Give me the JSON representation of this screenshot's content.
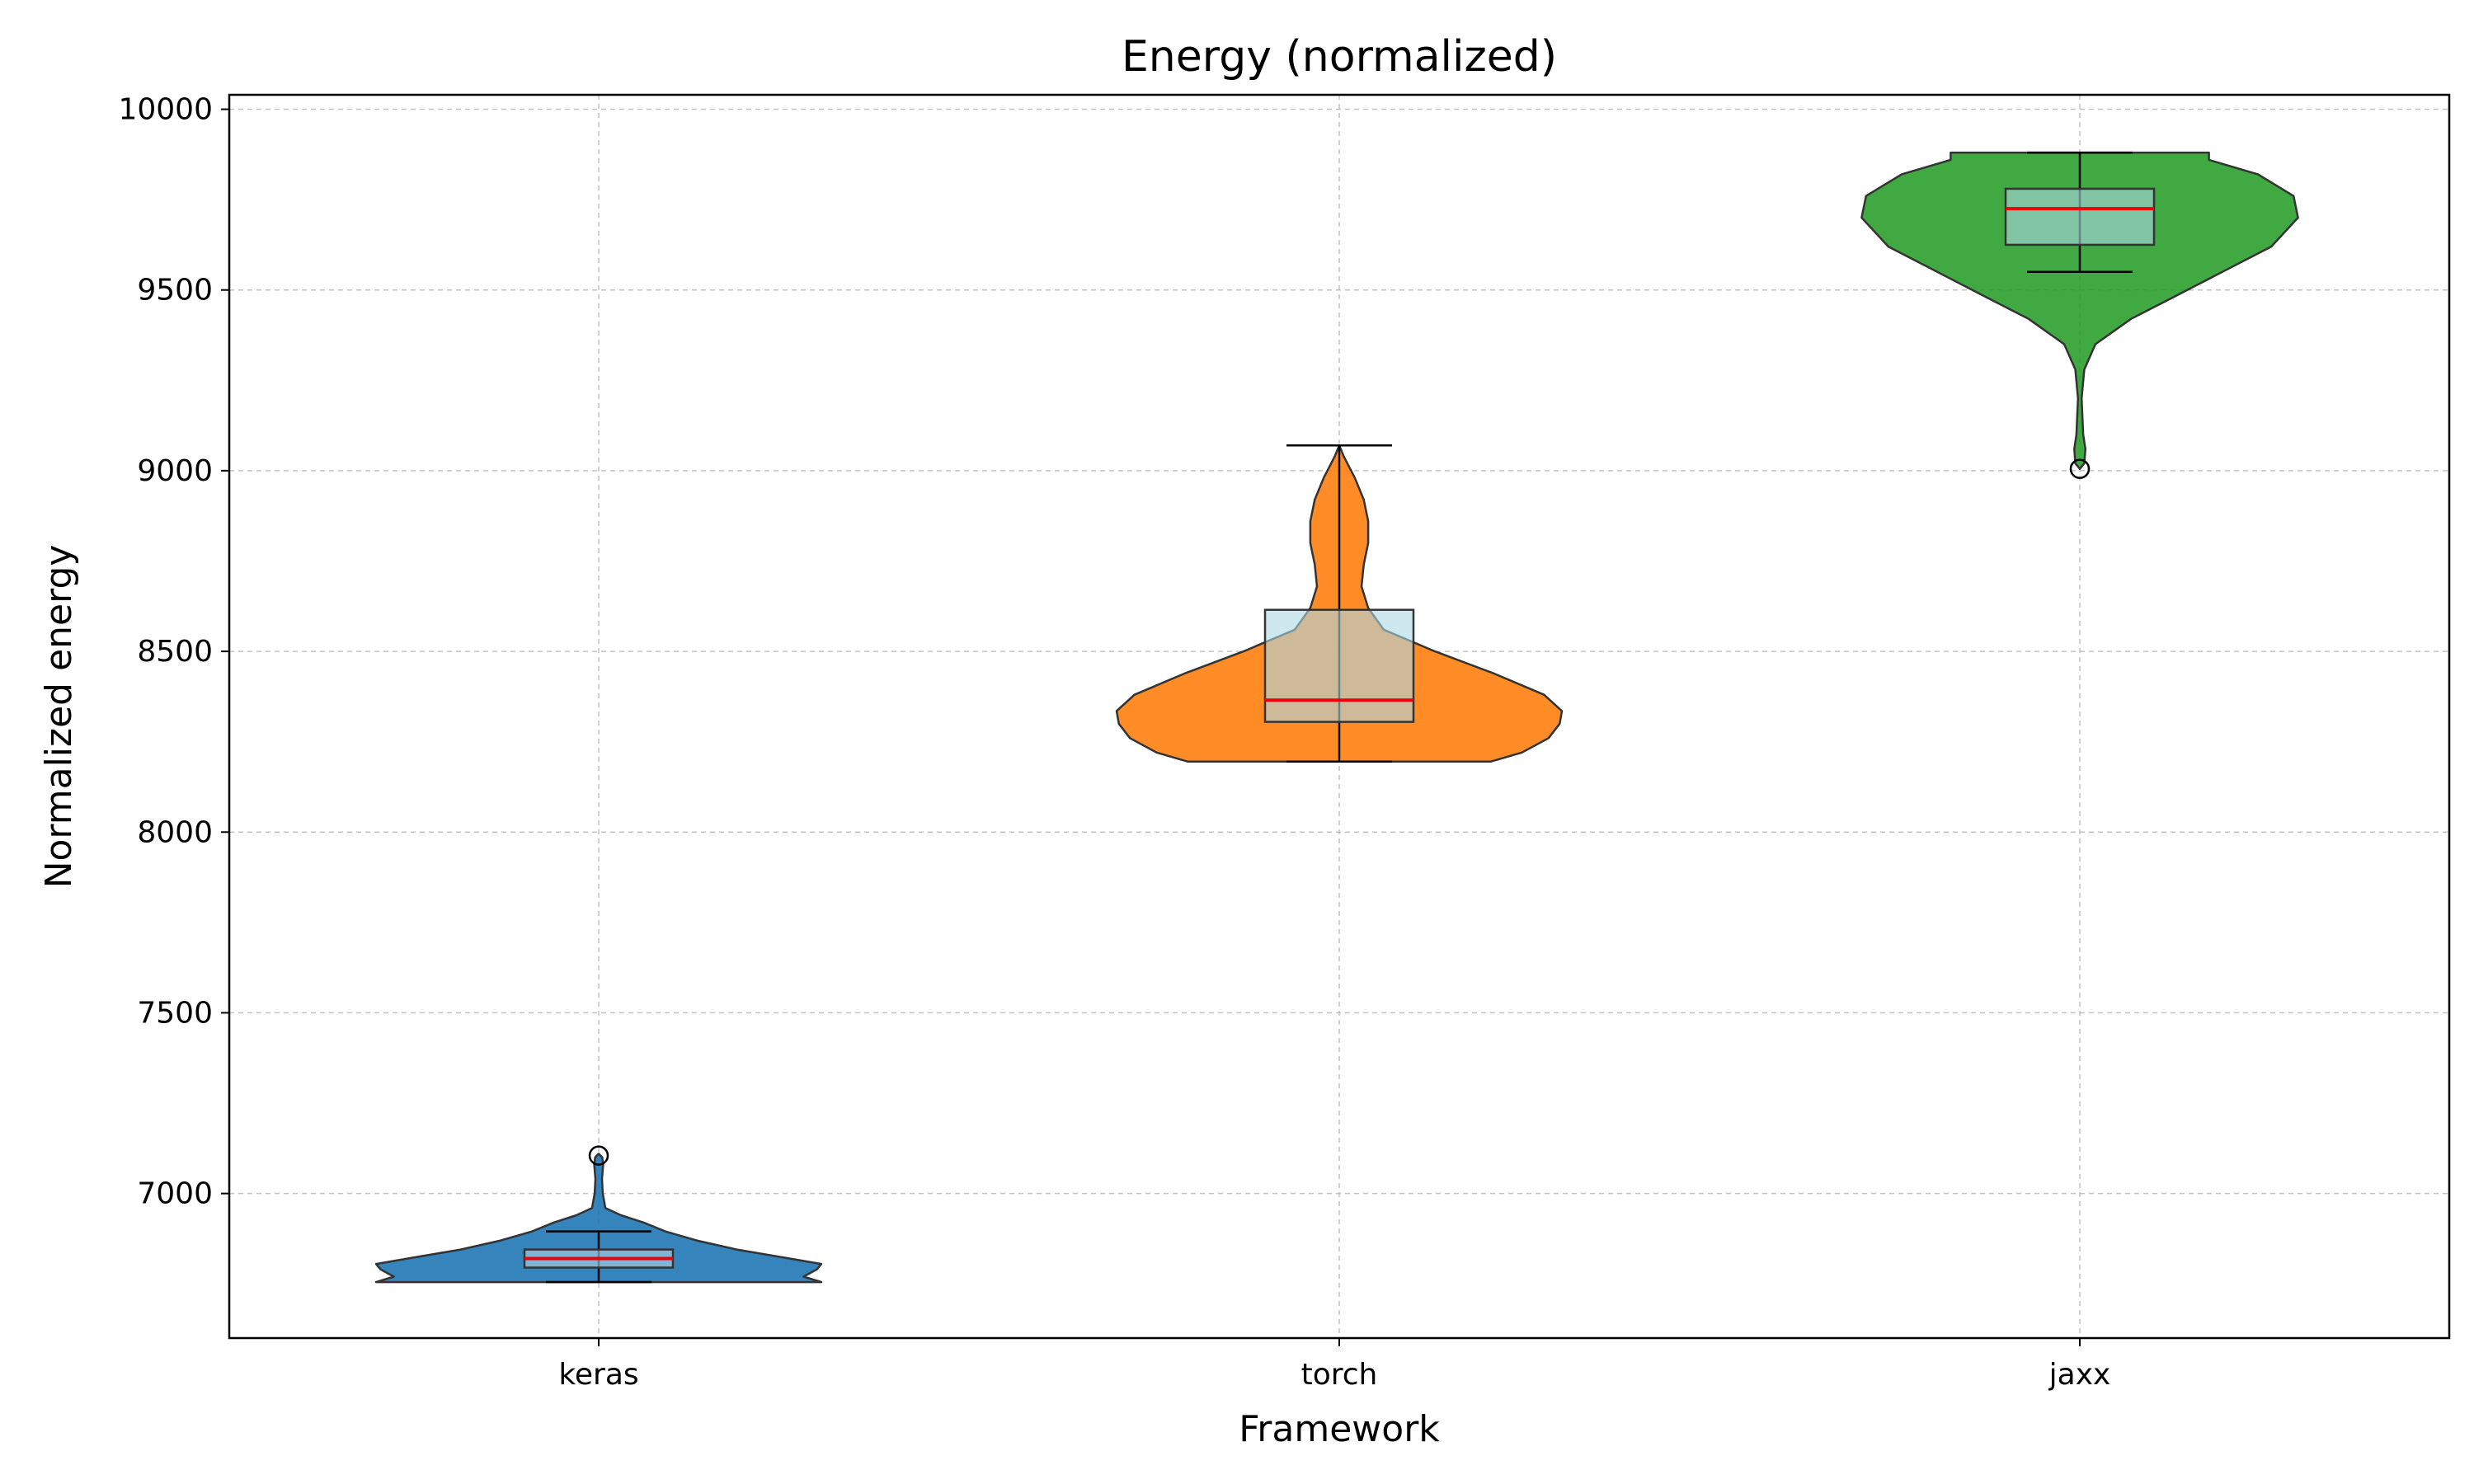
{
  "chart_data": {
    "type": "violin",
    "title": "Energy (normalized)",
    "xlabel": "Framework",
    "ylabel": "Normalized energy",
    "categories": [
      "keras",
      "torch",
      "jaxx"
    ],
    "ylim": [
      6600,
      10040
    ],
    "yticks": [
      7000,
      7500,
      8000,
      8500,
      9000,
      9500,
      10000
    ],
    "grid": true,
    "series": [
      {
        "category": "keras",
        "color": "#1f77b4",
        "min": 6755,
        "q1": 6795,
        "median": 6820,
        "q3": 6845,
        "whisker_low": 6755,
        "whisker_high": 6895,
        "max": 7110,
        "outliers": [
          7105
        ],
        "profile": [
          [
            6755,
            1.0
          ],
          [
            6770,
            0.92
          ],
          [
            6790,
            0.98
          ],
          [
            6805,
            1.0
          ],
          [
            6820,
            0.86
          ],
          [
            6845,
            0.62
          ],
          [
            6870,
            0.44
          ],
          [
            6895,
            0.3
          ],
          [
            6920,
            0.2
          ],
          [
            6940,
            0.1
          ],
          [
            6960,
            0.03
          ],
          [
            7000,
            0.018
          ],
          [
            7040,
            0.015
          ],
          [
            7080,
            0.02
          ],
          [
            7100,
            0.016
          ],
          [
            7110,
            0.0
          ]
        ]
      },
      {
        "category": "torch",
        "color": "#ff7f0e",
        "min": 8195,
        "q1": 8305,
        "median": 8365,
        "q3": 8615,
        "whisker_low": 8195,
        "whisker_high": 9070,
        "max": 9070,
        "outliers": [],
        "profile": [
          [
            8195,
            0.68
          ],
          [
            8220,
            0.82
          ],
          [
            8260,
            0.94
          ],
          [
            8300,
            0.99
          ],
          [
            8335,
            1.0
          ],
          [
            8380,
            0.92
          ],
          [
            8440,
            0.69
          ],
          [
            8500,
            0.43
          ],
          [
            8560,
            0.2
          ],
          [
            8620,
            0.13
          ],
          [
            8680,
            0.1
          ],
          [
            8740,
            0.11
          ],
          [
            8800,
            0.13
          ],
          [
            8860,
            0.13
          ],
          [
            8920,
            0.11
          ],
          [
            8980,
            0.07
          ],
          [
            9040,
            0.02
          ],
          [
            9070,
            0.0
          ]
        ]
      },
      {
        "category": "jaxx",
        "color": "#2ca02c",
        "min": 9005,
        "q1": 9625,
        "median": 9725,
        "q3": 9780,
        "whisker_low": 9550,
        "whisker_high": 9880,
        "max": 9880,
        "outliers": [
          9005
        ],
        "profile": [
          [
            9005,
            0.0
          ],
          [
            9020,
            0.02
          ],
          [
            9060,
            0.025
          ],
          [
            9100,
            0.015
          ],
          [
            9200,
            0.008
          ],
          [
            9280,
            0.02
          ],
          [
            9350,
            0.07
          ],
          [
            9420,
            0.23
          ],
          [
            9480,
            0.42
          ],
          [
            9550,
            0.64
          ],
          [
            9620,
            0.86
          ],
          [
            9700,
            0.98
          ],
          [
            9760,
            0.96
          ],
          [
            9820,
            0.8
          ],
          [
            9860,
            0.58
          ],
          [
            9880,
            0.58
          ]
        ]
      }
    ]
  }
}
